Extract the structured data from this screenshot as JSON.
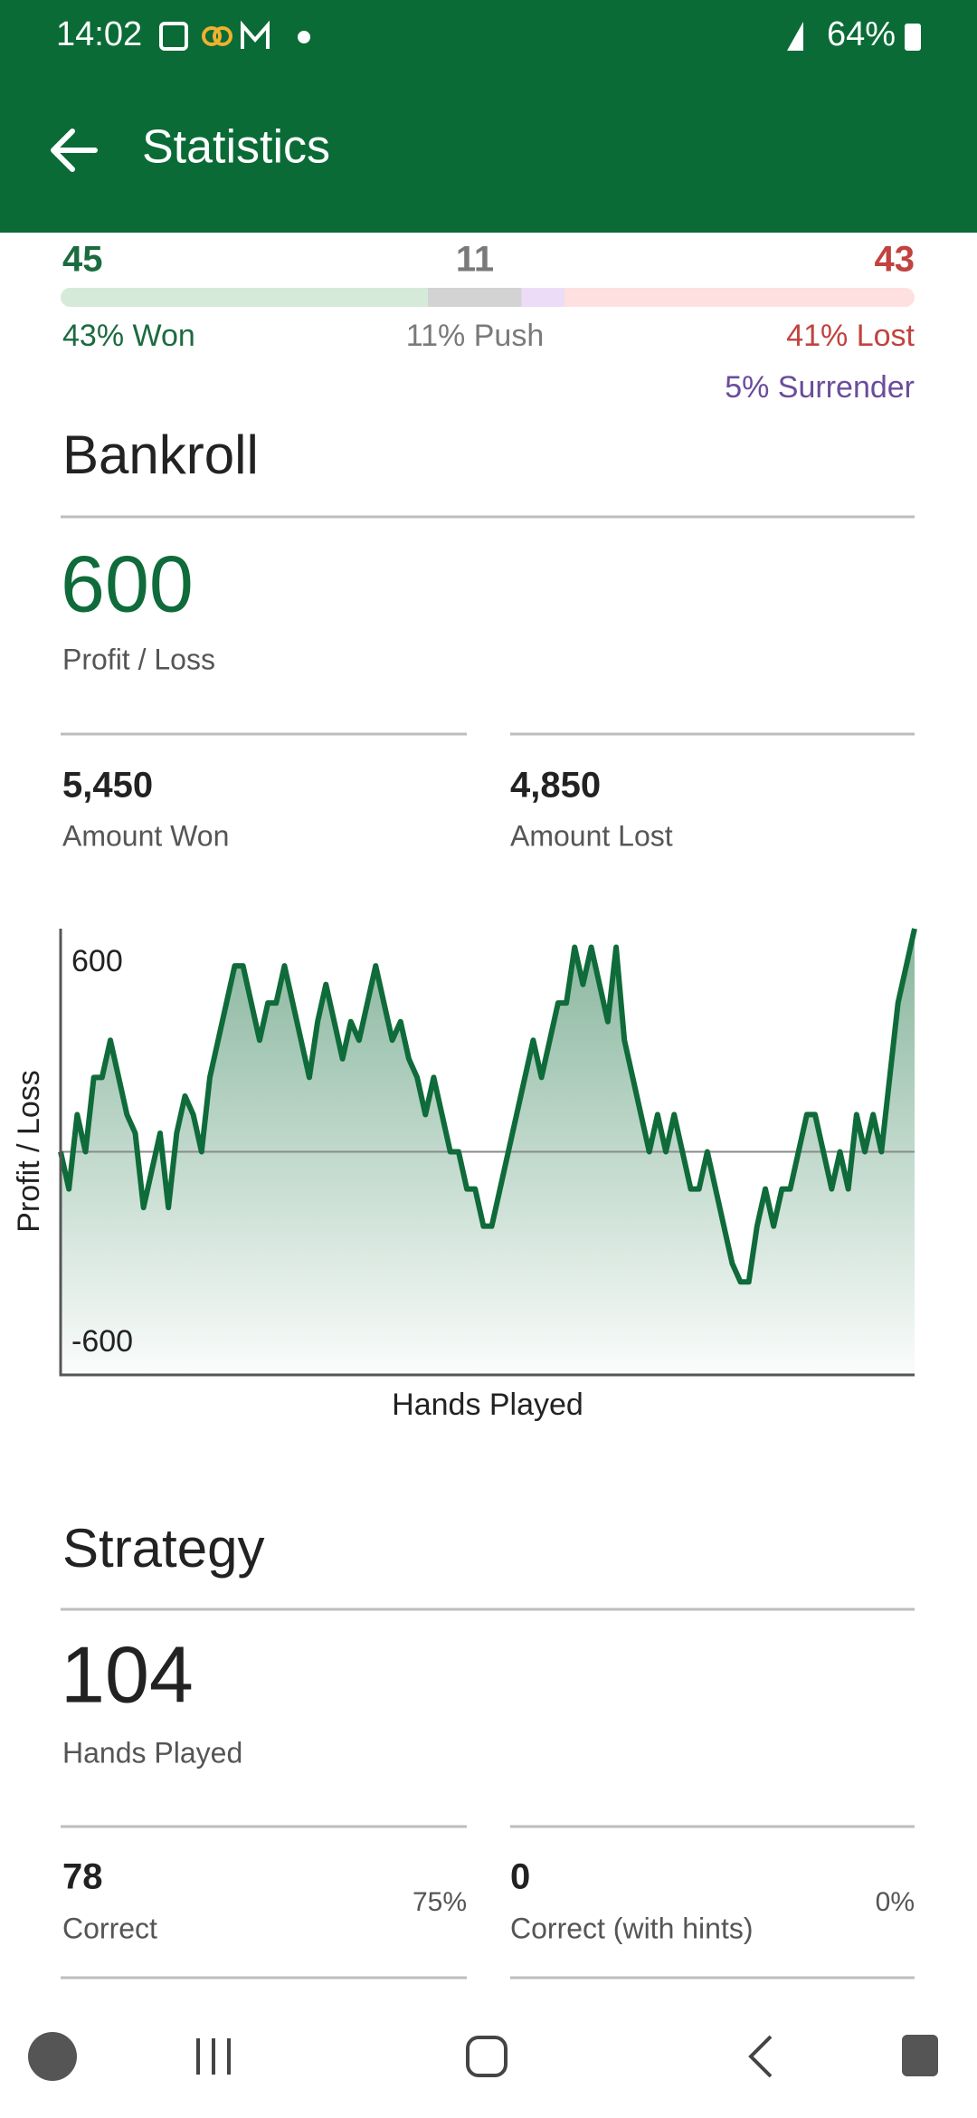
{
  "status_bar": {
    "time": "14:02",
    "battery": "64%"
  },
  "app_bar": {
    "title": "Statistics"
  },
  "results": {
    "counts": [
      {
        "name": "won",
        "value": 45
      },
      {
        "name": "push",
        "value": 11
      },
      {
        "name": "lost",
        "value": 43
      }
    ],
    "segments": [
      {
        "label": "43% Won",
        "percent": 43,
        "color": "#d5ead8",
        "text_color": "#1c6b40"
      },
      {
        "label": "11% Push",
        "percent": 11,
        "color": "#d3d3d3",
        "text_color": "#7a7a7a"
      },
      {
        "label": "5% Surrender",
        "percent": 5,
        "color": "#ecdcf8",
        "text_color": "#6a4c9c"
      },
      {
        "label": "41% Lost",
        "percent": 41,
        "color": "#fde0df",
        "text_color": "#c0433f"
      }
    ]
  },
  "bankroll": {
    "heading": "Bankroll",
    "profit": {
      "value": "600",
      "label": "Profit / Loss"
    },
    "won": {
      "value": "5,450",
      "label": "Amount Won"
    },
    "lost": {
      "value": "4,850",
      "label": "Amount Lost"
    }
  },
  "chart_data": {
    "type": "line",
    "x_label": "Hands Played",
    "y_label": "Profit / Loss",
    "color": "#0f6b3a",
    "ylim": [
      -600,
      600
    ],
    "yticks": [
      600,
      -600
    ],
    "values": [
      0,
      -100,
      100,
      0,
      200,
      200,
      300,
      200,
      100,
      50,
      -150,
      -50,
      50,
      -150,
      50,
      150,
      100,
      0,
      200,
      300,
      400,
      500,
      500,
      400,
      300,
      400,
      400,
      500,
      400,
      300,
      200,
      350,
      450,
      350,
      250,
      350,
      300,
      400,
      500,
      400,
      300,
      350,
      250,
      200,
      100,
      200,
      100,
      0,
      0,
      -100,
      -100,
      -200,
      -200,
      -100,
      0,
      100,
      200,
      300,
      200,
      300,
      400,
      400,
      550,
      450,
      550,
      450,
      350,
      550,
      300,
      200,
      100,
      0,
      100,
      0,
      100,
      0,
      -100,
      -100,
      0,
      -100,
      -200,
      -300,
      -350,
      -350,
      -200,
      -100,
      -200,
      -100,
      -100,
      0,
      100,
      100,
      0,
      -100,
      0,
      -100,
      100,
      0,
      100,
      0,
      200,
      400,
      500,
      600
    ]
  },
  "strategy": {
    "heading": "Strategy",
    "hands": {
      "value": "104",
      "label": "Hands Played"
    },
    "correct": {
      "value": "78",
      "label": "Correct",
      "percent": "75%"
    },
    "hints": {
      "value": "0",
      "label": "Correct (with hints)",
      "percent": "0%"
    }
  }
}
